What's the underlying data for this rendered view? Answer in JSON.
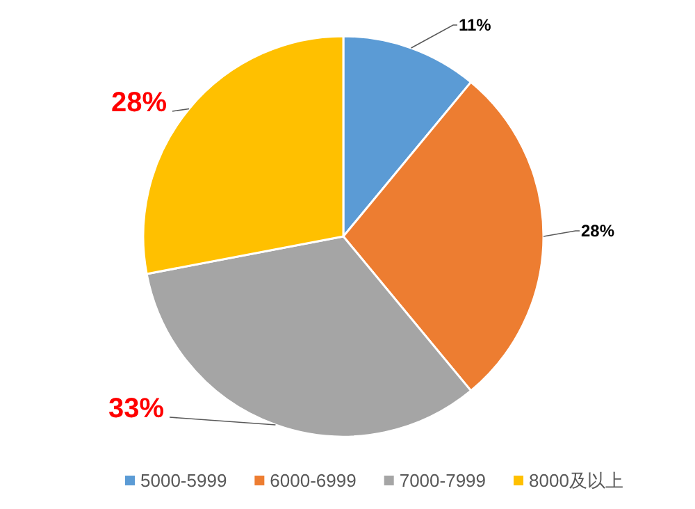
{
  "chart_data": {
    "type": "pie",
    "categories": [
      "5000-5999",
      "6000-6999",
      "7000-7999",
      "8000及以上"
    ],
    "values": [
      11,
      28,
      33,
      28
    ],
    "colors": [
      "#5b9bd5",
      "#ed7d31",
      "#a5a5a5",
      "#ffc000"
    ],
    "value_labels": [
      "11%",
      "28%",
      "33%",
      "28%"
    ],
    "legend": "bottom"
  }
}
